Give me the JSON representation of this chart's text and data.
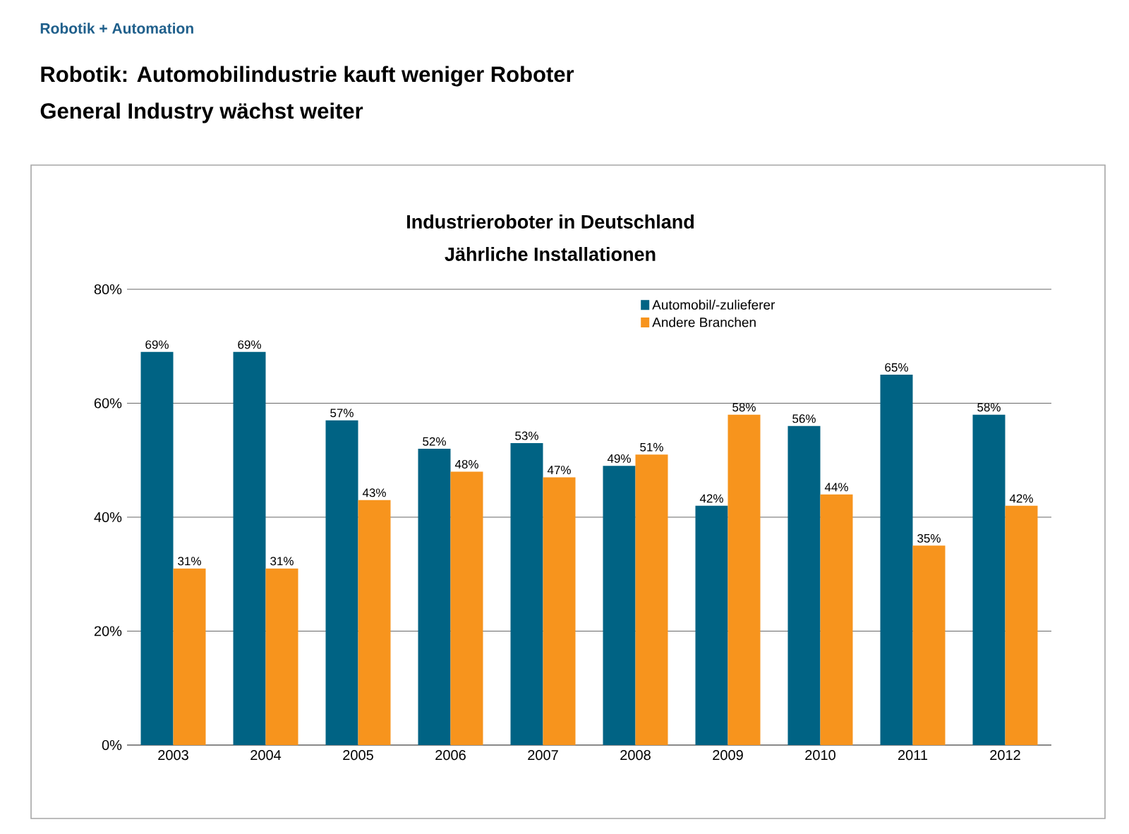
{
  "chart_data": {
    "type": "bar",
    "title": "Industrieroboter in Deutschland",
    "subtitle": "Jährliche Installationen",
    "annotations": [
      "Robotik + Automation",
      "Robotik: Automobilindustrie kauft weniger Roboter",
      "General Industry wächst weiter"
    ],
    "categories": [
      "2003",
      "2004",
      "2005",
      "2006",
      "2007",
      "2008",
      "2009",
      "2010",
      "2011",
      "2012"
    ],
    "series": [
      {
        "name": "Automobil/-zulieferer",
        "color": "#006384",
        "values": [
          69,
          69,
          57,
          52,
          53,
          49,
          42,
          56,
          65,
          58
        ],
        "value_labels": [
          "69%",
          "69%",
          "57%",
          "52%",
          "53%",
          "49%",
          "42%",
          "56%",
          "65%",
          "58%"
        ]
      },
      {
        "name": "Andere Branchen",
        "color": "#f7941d",
        "values": [
          31,
          31,
          43,
          48,
          47,
          51,
          58,
          44,
          35,
          42
        ],
        "value_labels": [
          "31%",
          "31%",
          "43%",
          "48%",
          "47%",
          "51%",
          "58%",
          "44%",
          "35%",
          "42%"
        ]
      }
    ],
    "ylim": [
      0,
      80
    ],
    "yticks": [
      {
        "value": 0,
        "label": "0%"
      },
      {
        "value": 20,
        "label": "20%"
      },
      {
        "value": 40,
        "label": "40%"
      },
      {
        "value": 60,
        "label": "60%"
      },
      {
        "value": 80,
        "label": "80%"
      }
    ],
    "grid": "y",
    "legend": "top right"
  }
}
